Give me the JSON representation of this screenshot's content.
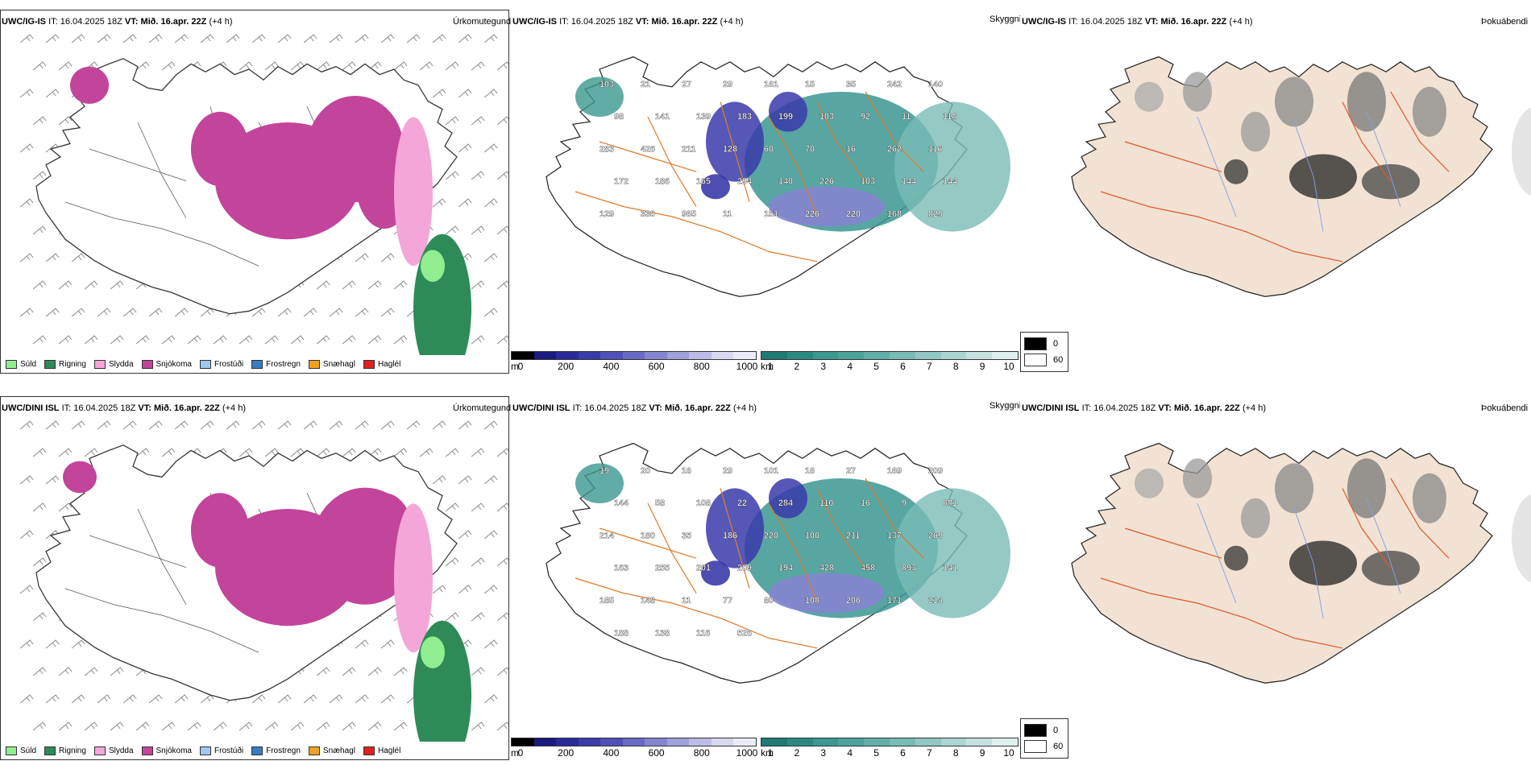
{
  "rows": [
    {
      "model": "UWC/IG-IS",
      "it_label": "IT:",
      "it_value": "16.04.2025 18Z",
      "vt_label": "VT:",
      "vt_value": "Mið. 16.apr. 22Z",
      "lead": "(+4 h)"
    },
    {
      "model": "UWC/DINI ISL",
      "it_label": "IT:",
      "it_value": "16.04.2025 18Z",
      "vt_label": "VT:",
      "vt_value": "Mið. 16.apr. 22Z",
      "lead": "(+4 h)"
    }
  ],
  "panel_titles": {
    "precip": "Úrkomutegund",
    "cloud": "Skyggni",
    "fog": "Þokuábendi"
  },
  "precip_legend": [
    {
      "label": "Súld",
      "color": "#90ee90"
    },
    {
      "label": "Rigning",
      "color": "#2e8b57"
    },
    {
      "label": "Slydda",
      "color": "#f4a6d8"
    },
    {
      "label": "Snjókoma",
      "color": "#c2449b"
    },
    {
      "label": "Frostúði",
      "color": "#9ec9f0"
    },
    {
      "label": "Frostregn",
      "color": "#3a7cc2"
    },
    {
      "label": "Snæhagl",
      "color": "#f0a020"
    },
    {
      "label": "Haglél",
      "color": "#e02020"
    }
  ],
  "cloudbase_bar": {
    "unit": "m",
    "ticks": [
      "0",
      "200",
      "400",
      "600",
      "800",
      "1000"
    ],
    "colors": [
      "#000000",
      "#1a1a80",
      "#2a2a9a",
      "#3a3aaa",
      "#5050b8",
      "#6a6ac4",
      "#8585cf",
      "#a0a0da",
      "#bcbce6",
      "#d8d8f0",
      "#ececf8"
    ]
  },
  "visibility_bar": {
    "unit": "km",
    "ticks": [
      "1",
      "2",
      "3",
      "4",
      "5",
      "6",
      "7",
      "8",
      "9",
      "10"
    ],
    "colors": [
      "#1f7a72",
      "#2a8a82",
      "#3b9790",
      "#4da39c",
      "#62afa9",
      "#79bbb5",
      "#92c8c3",
      "#abd5d1",
      "#c5e2df",
      "#e0f0ee"
    ]
  },
  "fog_legend": [
    {
      "label": "0",
      "color": "#000000"
    },
    {
      "label": "60",
      "color": "#ffffff"
    }
  ],
  "cloud_labels": [
    [
      "103",
      "21",
      "27",
      "29",
      "161",
      "15",
      "35",
      "242",
      "140",
      "98",
      "141",
      "139",
      "183",
      "199",
      "103",
      "92",
      "11",
      "118",
      "283",
      "426",
      "211",
      "128",
      "60",
      "70",
      "16",
      "262",
      "116",
      "172",
      "186",
      "165",
      "294",
      "140",
      "226",
      "103",
      "144",
      "144",
      "129",
      "330",
      "965",
      "11",
      "151",
      "226",
      "220",
      "168",
      "829"
    ],
    [
      "19",
      "20",
      "16",
      "29",
      "101",
      "16",
      "27",
      "169",
      "209",
      "144",
      "58",
      "108",
      "22",
      "284",
      "110",
      "16",
      "9",
      "681",
      "214",
      "180",
      "35",
      "186",
      "220",
      "100",
      "211",
      "137",
      "269",
      "163",
      "255",
      "201",
      "209",
      "194",
      "428",
      "458",
      "893",
      "141",
      "185",
      "148",
      "11",
      "77",
      "80",
      "108",
      "206",
      "171",
      "214",
      "188",
      "138",
      "116",
      "526"
    ]
  ]
}
